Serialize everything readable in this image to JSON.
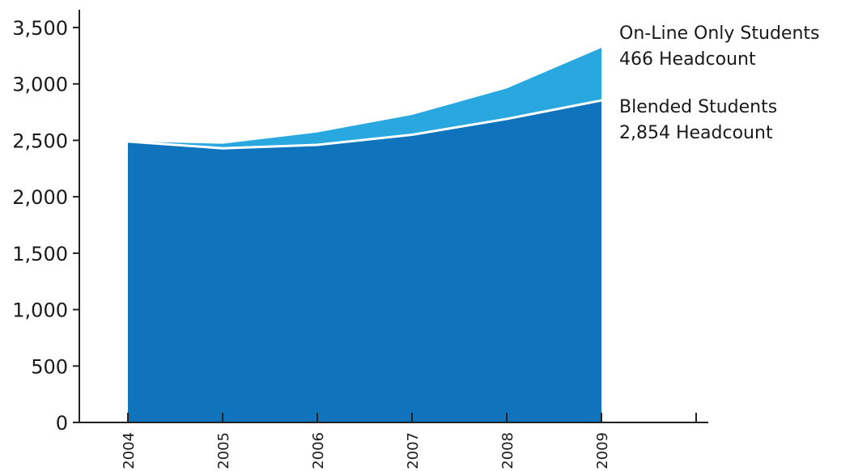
{
  "chart_data": {
    "type": "area",
    "stacked": true,
    "x": [
      "2004",
      "2005",
      "2006",
      "2007",
      "2008",
      "2009"
    ],
    "series": [
      {
        "name": "Blended Students",
        "values": [
          2490,
          2430,
          2460,
          2550,
          2690,
          2854
        ],
        "color": "#1074bd"
      },
      {
        "name": "On-Line Only Students",
        "values": [
          0,
          40,
          110,
          175,
          270,
          466
        ],
        "color": "#29a8e0"
      }
    ],
    "yticks": [
      0,
      500,
      1000,
      1500,
      2000,
      2500,
      3000,
      3500
    ],
    "ytick_labels": [
      "0",
      "500",
      "1,000",
      "1,500",
      "2,000",
      "2,500",
      "3,000",
      "3,500"
    ],
    "ylim": [
      0,
      3500
    ],
    "grid": false,
    "legend": [
      {
        "title": "On-Line Only Students",
        "detail": "466 Headcount"
      },
      {
        "title": "Blended Students",
        "detail": "2,854 Headcount"
      }
    ]
  }
}
